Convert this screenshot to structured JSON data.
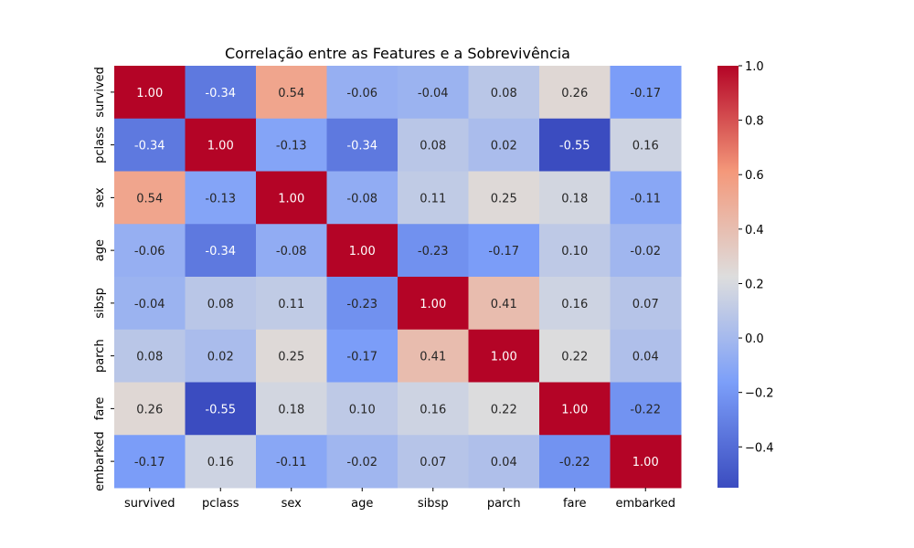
{
  "chart_data": {
    "type": "heatmap",
    "title": "Correlação entre as Features e a Sobrevivência",
    "xlabel": "",
    "ylabel": "",
    "x_categories": [
      "survived",
      "pclass",
      "sex",
      "age",
      "sibsp",
      "parch",
      "fare",
      "embarked"
    ],
    "y_categories": [
      "survived",
      "pclass",
      "sex",
      "age",
      "sibsp",
      "parch",
      "fare",
      "embarked"
    ],
    "values": [
      [
        1.0,
        -0.34,
        0.54,
        -0.06,
        -0.04,
        0.08,
        0.26,
        -0.17
      ],
      [
        -0.34,
        1.0,
        -0.13,
        -0.34,
        0.08,
        0.02,
        -0.55,
        0.16
      ],
      [
        0.54,
        -0.13,
        1.0,
        -0.08,
        0.11,
        0.25,
        0.18,
        -0.11
      ],
      [
        -0.06,
        -0.34,
        -0.08,
        1.0,
        -0.23,
        -0.17,
        0.1,
        -0.02
      ],
      [
        -0.04,
        0.08,
        0.11,
        -0.23,
        1.0,
        0.41,
        0.16,
        0.07
      ],
      [
        0.08,
        0.02,
        0.25,
        -0.17,
        0.41,
        1.0,
        0.22,
        0.04
      ],
      [
        0.26,
        -0.55,
        0.18,
        0.1,
        0.16,
        0.22,
        1.0,
        -0.22
      ],
      [
        -0.17,
        0.16,
        -0.11,
        -0.02,
        0.07,
        0.04,
        -0.22,
        1.0
      ]
    ],
    "value_range": [
      -0.55,
      1.0
    ],
    "colormap": "coolwarm",
    "colorbar": {
      "ticks": [
        -0.4,
        -0.2,
        0.0,
        0.2,
        0.4,
        0.6,
        0.8,
        1.0
      ],
      "tick_labels": [
        "−0.4",
        "−0.2",
        "0.0",
        "0.2",
        "0.4",
        "0.6",
        "0.8",
        "1.0"
      ]
    },
    "annotation_format": "2 decimals"
  }
}
